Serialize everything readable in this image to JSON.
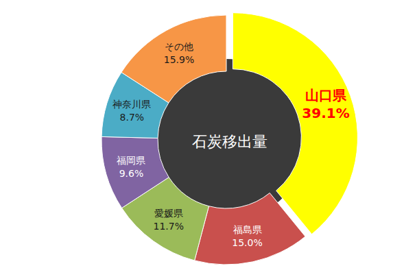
{
  "chart_data": {
    "type": "pie",
    "title": "石炭移出量",
    "categories": [
      "山口県",
      "福島県",
      "愛媛県",
      "福岡県",
      "神奈川県",
      "その他"
    ],
    "values": [
      39.1,
      15.0,
      11.7,
      9.6,
      8.7,
      15.9
    ],
    "value_labels": [
      "39.1%",
      "15.0%",
      "11.7%",
      "9.6%",
      "8.7%",
      "15.9%"
    ],
    "colors": [
      "#ffff00",
      "#c9504d",
      "#9bbb59",
      "#8064a2",
      "#4bacc6",
      "#f79646"
    ],
    "data_labels": true
  }
}
